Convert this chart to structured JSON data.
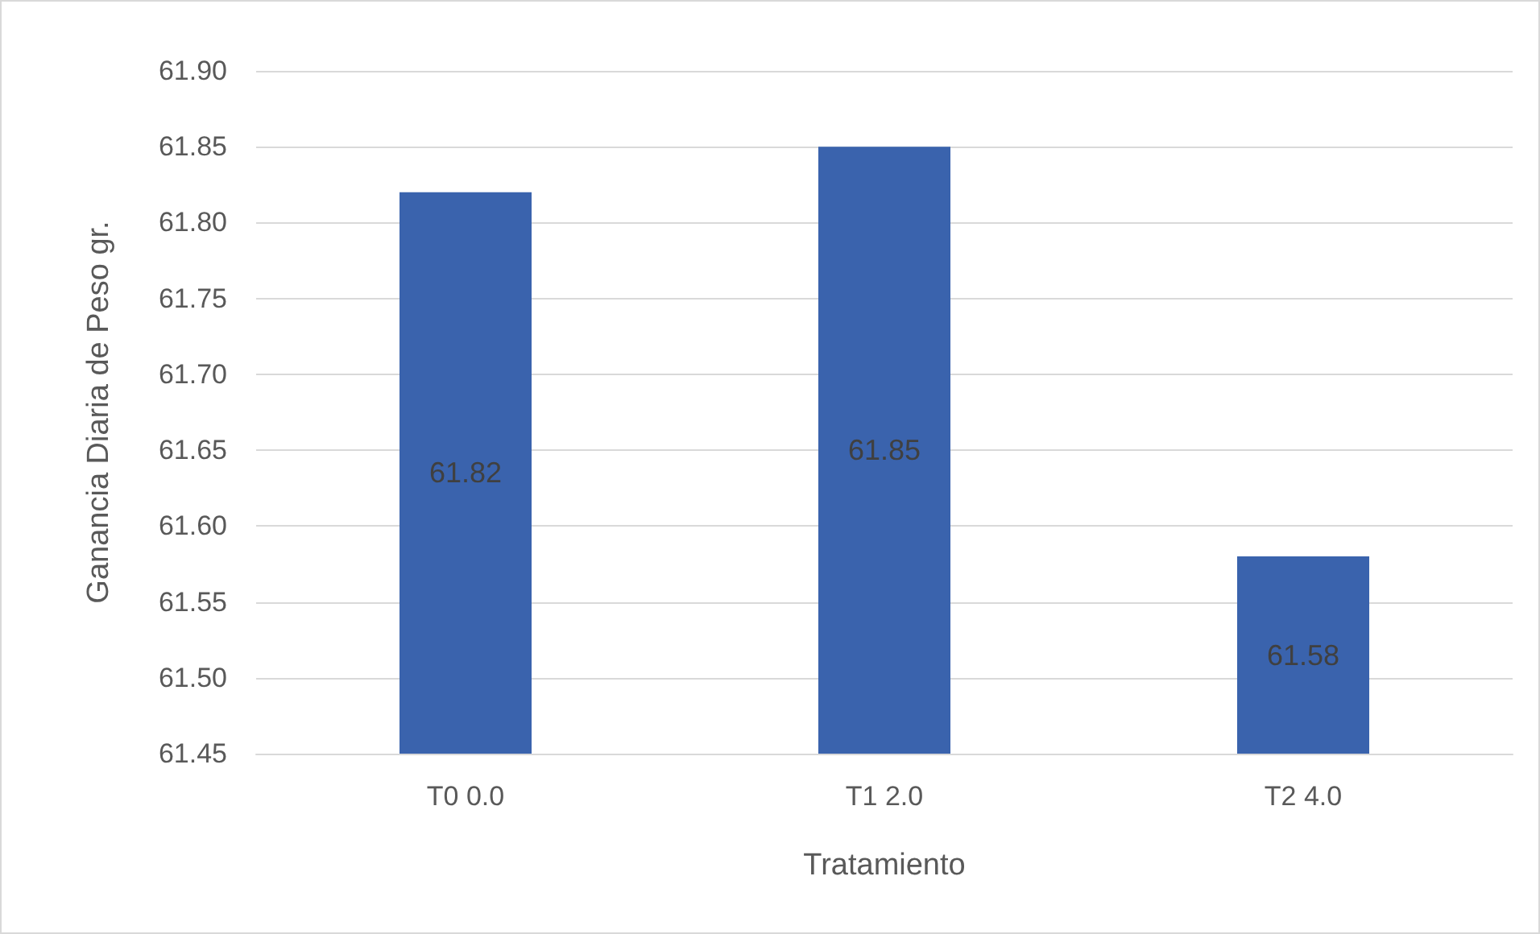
{
  "chart_data": {
    "type": "bar",
    "xlabel": "Tratamiento",
    "ylabel": "Ganancia Diaria de Peso gr.",
    "categories": [
      "T0 0.0",
      "T1 2.0",
      "T2 4.0"
    ],
    "values": [
      61.82,
      61.85,
      61.58
    ],
    "color": "#3a63ad",
    "data_labels": true,
    "ylim": [
      61.45,
      61.9
    ],
    "yticks": [
      {
        "value": 61.45,
        "label": "61.45"
      },
      {
        "value": 61.5,
        "label": "61.50"
      },
      {
        "value": 61.55,
        "label": "61.55"
      },
      {
        "value": 61.6,
        "label": "61.60"
      },
      {
        "value": 61.65,
        "label": "61.65"
      },
      {
        "value": 61.7,
        "label": "61.70"
      },
      {
        "value": 61.75,
        "label": "61.75"
      },
      {
        "value": 61.8,
        "label": "61.80"
      },
      {
        "value": 61.85,
        "label": "61.85"
      },
      {
        "value": 61.9,
        "label": "61.90"
      }
    ],
    "grid": "y"
  }
}
